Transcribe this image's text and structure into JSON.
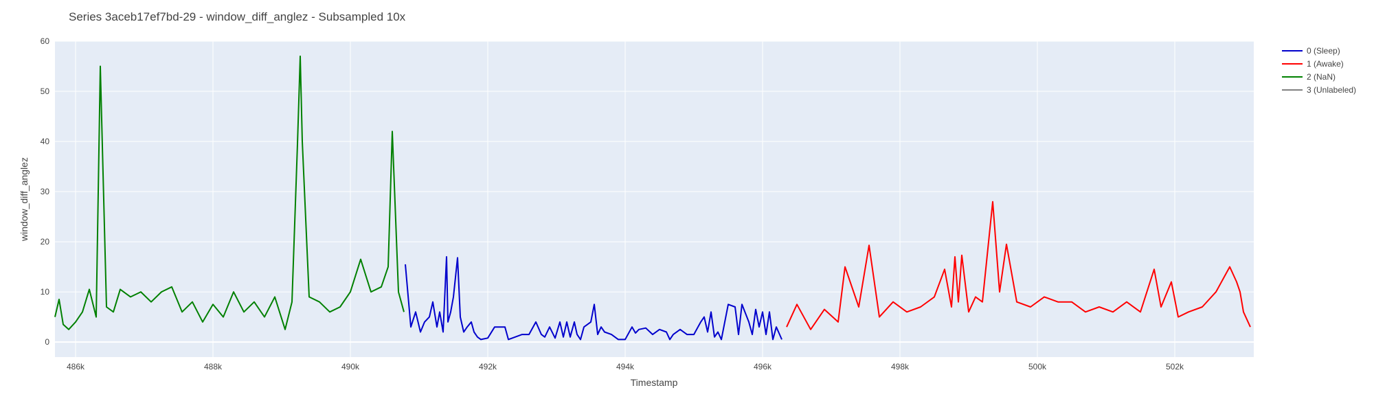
{
  "chart_data": {
    "type": "line",
    "title": "Series 3aceb17ef7bd-29 - window_diff_anglez - Subsampled 10x",
    "xlabel": "Timestamp",
    "ylabel": "window_diff_anglez",
    "xlim": [
      485700,
      503150
    ],
    "ylim": [
      -3,
      60
    ],
    "x_ticks": [
      486000,
      488000,
      490000,
      492000,
      494000,
      496000,
      498000,
      500000,
      502000
    ],
    "x_tick_labels": [
      "486k",
      "488k",
      "490k",
      "492k",
      "494k",
      "496k",
      "498k",
      "500k",
      "502k"
    ],
    "y_ticks": [
      0,
      10,
      20,
      30,
      40,
      50,
      60
    ],
    "y_tick_labels": [
      "0",
      "10",
      "20",
      "30",
      "40",
      "50",
      "60"
    ],
    "grid": true,
    "legend_position": "top-right",
    "series": [
      {
        "name": "0 (Sleep)",
        "color": "#0000cc",
        "x": [
          490800,
          490880,
          490950,
          491020,
          491080,
          491150,
          491200,
          491260,
          491300,
          491350,
          491400,
          491420,
          491460,
          491500,
          491560,
          491600,
          491650,
          491700,
          491760,
          491800,
          491850,
          491900,
          492000,
          492100,
          492250,
          492300,
          492500,
          492600,
          492700,
          492780,
          492830,
          492900,
          492980,
          493050,
          493100,
          493150,
          493200,
          493260,
          493300,
          493350,
          493400,
          493500,
          493550,
          493600,
          493650,
          493700,
          493800,
          493900,
          494000,
          494100,
          494150,
          494200,
          494300,
          494400,
          494500,
          494600,
          494650,
          494700,
          494800,
          494900,
          495000,
          495100,
          495150,
          495200,
          495250,
          495300,
          495350,
          495400,
          495500,
          495600,
          495650,
          495700,
          495800,
          495850,
          495900,
          495950,
          496000,
          496050,
          496100,
          496150,
          496200,
          496280
        ],
        "y": [
          15.5,
          3,
          6,
          2,
          4,
          5,
          8,
          3,
          6,
          2,
          17,
          4,
          6,
          9,
          16.8,
          5,
          2,
          3,
          4,
          2,
          1,
          0.5,
          0.8,
          3,
          3,
          0.5,
          1.5,
          1.5,
          4,
          1.5,
          1,
          3,
          0.8,
          4,
          1,
          4,
          1,
          4,
          1.5,
          0.5,
          3,
          4,
          7.5,
          1.5,
          3,
          2,
          1.5,
          0.5,
          0.5,
          3,
          1.8,
          2.5,
          2.8,
          1.5,
          2.5,
          2,
          0.5,
          1.5,
          2.5,
          1.5,
          1.5,
          4,
          5,
          2,
          6,
          1,
          2,
          0.5,
          7.5,
          7,
          1.5,
          7.5,
          4,
          1.5,
          6.5,
          3,
          6,
          1.5,
          6,
          0.5,
          3,
          0.5
        ]
      },
      {
        "name": "1 (Awake)",
        "color": "#ff0000",
        "x": [
          496350,
          496500,
          496700,
          496900,
          497100,
          497200,
          497400,
          497550,
          497700,
          497900,
          498100,
          498300,
          498500,
          498650,
          498750,
          498800,
          498850,
          498900,
          499000,
          499100,
          499200,
          499350,
          499450,
          499550,
          499700,
          499900,
          500100,
          500300,
          500500,
          500700,
          500900,
          501100,
          501300,
          501500,
          501700,
          501800,
          501950,
          502050,
          502200,
          502400,
          502600,
          502800,
          502900,
          502950,
          503000,
          503100
        ],
        "y": [
          3,
          7.5,
          2.5,
          6.5,
          4,
          15,
          7,
          19.3,
          5,
          8,
          6,
          7,
          9,
          14.5,
          7,
          17,
          8,
          17.3,
          6,
          9,
          8,
          28,
          10,
          19.5,
          8,
          7,
          9,
          8,
          8,
          6,
          7,
          6,
          8,
          6,
          14.5,
          7,
          12,
          5,
          6,
          7,
          10,
          15,
          12,
          10,
          6,
          3
        ]
      },
      {
        "name": "2 (NaN)",
        "color": "#008000",
        "x": [
          485700,
          485760,
          485820,
          485900,
          486000,
          486100,
          486200,
          486300,
          486360,
          486450,
          486550,
          486650,
          486800,
          486950,
          487100,
          487250,
          487400,
          487550,
          487700,
          487850,
          488000,
          488150,
          488300,
          488450,
          488600,
          488750,
          488900,
          489050,
          489150,
          489230,
          489270,
          489300,
          489400,
          489550,
          489700,
          489850,
          490000,
          490150,
          490300,
          490450,
          490550,
          490610,
          490700,
          490780
        ],
        "y": [
          5,
          8.5,
          3.5,
          2.5,
          4,
          6,
          10.5,
          5,
          55,
          7,
          6,
          10.5,
          9,
          10,
          8,
          10,
          11,
          6,
          8,
          4,
          7.5,
          5,
          10,
          6,
          8,
          5,
          9,
          2.5,
          8,
          39.5,
          57,
          40,
          9,
          8,
          6,
          7,
          10,
          16.5,
          10,
          11,
          15,
          42,
          10,
          6
        ]
      },
      {
        "name": "3 (Unlabeled)",
        "color": "#808080",
        "x": [],
        "y": []
      }
    ]
  }
}
